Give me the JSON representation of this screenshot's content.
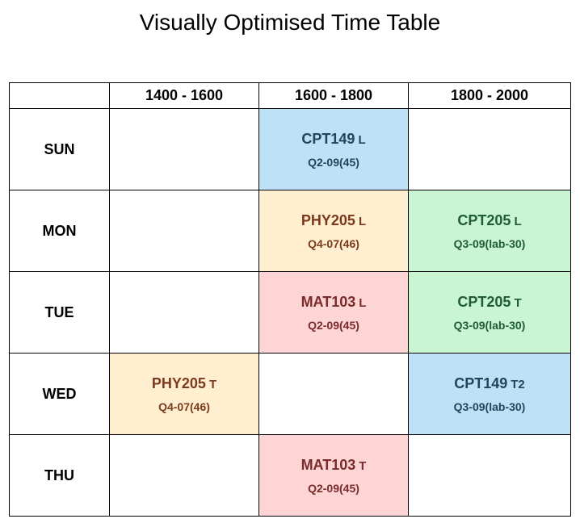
{
  "title": "Visually Optimised Time Table",
  "colors": {
    "blue": "#bfe1f7",
    "orange": "#ffeecf",
    "green": "#c9f5d3",
    "red": "#fdd5d5"
  },
  "header": {
    "slots": [
      "1400 - 1600",
      "1600 - 1800",
      "1800 - 2000"
    ]
  },
  "days": [
    "SUN",
    "MON",
    "TUE",
    "WED",
    "THU"
  ],
  "sessions": [
    {
      "day": "SUN",
      "slot": 1,
      "course": "CPT149",
      "type": "L",
      "room": "Q2-09(45)",
      "color": "blue"
    },
    {
      "day": "MON",
      "slot": 1,
      "course": "PHY205",
      "type": "L",
      "room": "Q4-07(46)",
      "color": "orange"
    },
    {
      "day": "MON",
      "slot": 2,
      "course": "CPT205",
      "type": "L",
      "room": "Q3-09(lab-30)",
      "color": "green"
    },
    {
      "day": "TUE",
      "slot": 1,
      "course": "MAT103",
      "type": "L",
      "room": "Q2-09(45)",
      "color": "red"
    },
    {
      "day": "TUE",
      "slot": 2,
      "course": "CPT205",
      "type": "T",
      "room": "Q3-09(lab-30)",
      "color": "green"
    },
    {
      "day": "WED",
      "slot": 0,
      "course": "PHY205",
      "type": "T",
      "room": "Q4-07(46)",
      "color": "orange"
    },
    {
      "day": "WED",
      "slot": 2,
      "course": "CPT149",
      "type": "T2",
      "room": "Q3-09(lab-30)",
      "color": "blue"
    },
    {
      "day": "THU",
      "slot": 1,
      "course": "MAT103",
      "type": "T",
      "room": "Q2-09(45)",
      "color": "red"
    }
  ]
}
